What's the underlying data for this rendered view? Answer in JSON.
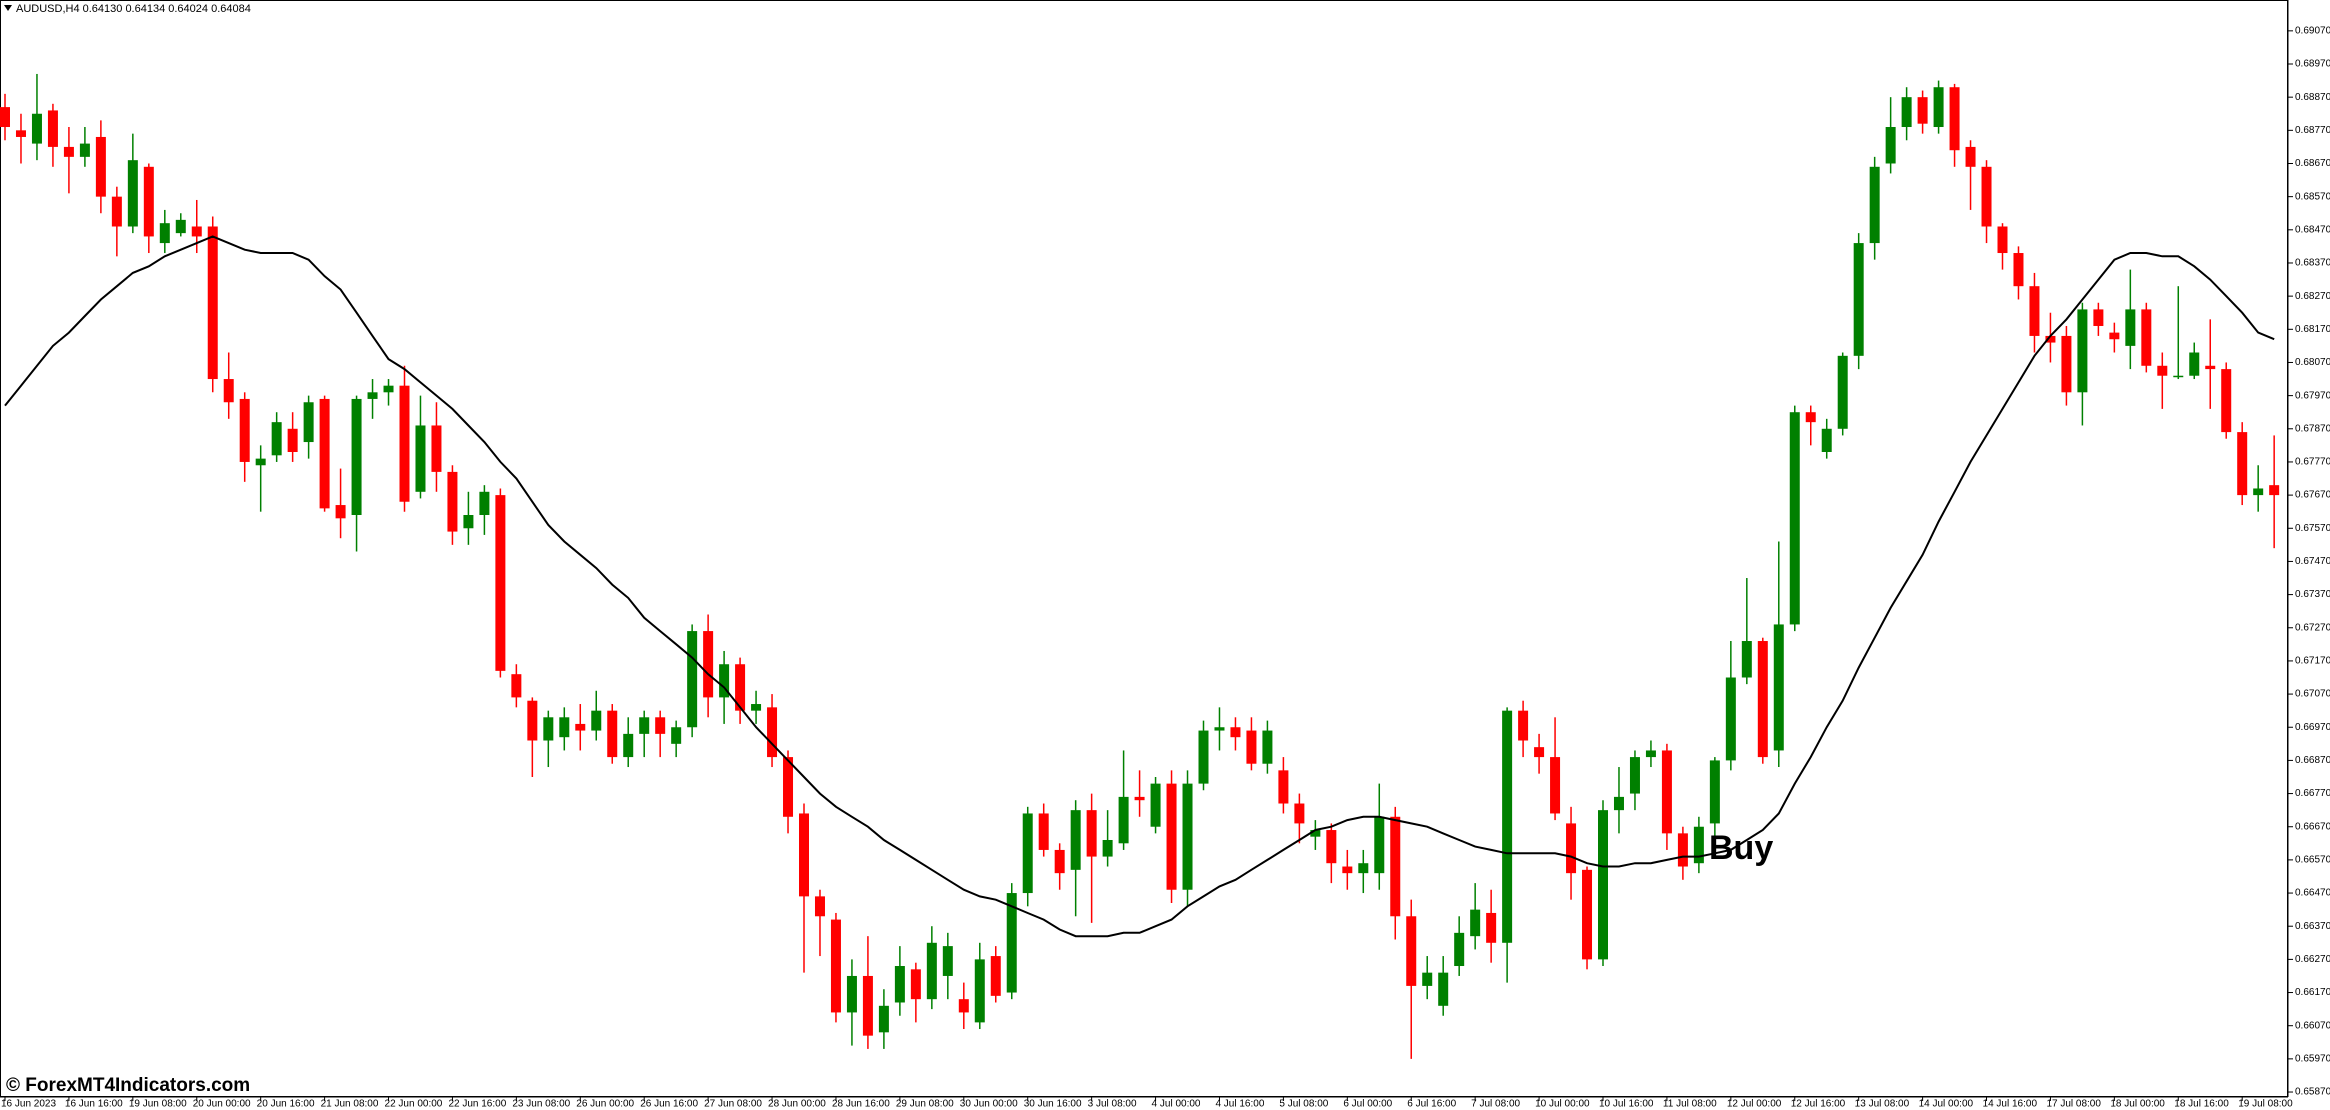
{
  "chart_data": {
    "type": "candlestick",
    "title": "AUDUSD,H4 0.64130 0.64134 0.64024 0.64084",
    "annotation": "Buy",
    "watermark": "© ForexMT4Indicators.com",
    "up_color": "#008000",
    "down_color": "#ff0000",
    "categories": [
      "16 Jun 2023",
      null,
      null,
      null,
      "16 Jun 16:00",
      null,
      null,
      null,
      "19 Jun 08:00",
      null,
      null,
      null,
      "20 Jun 00:00",
      null,
      null,
      null,
      "20 Jun 16:00",
      null,
      null,
      null,
      "21 Jun 08:00",
      null,
      null,
      null,
      "22 Jun 00:00",
      null,
      null,
      null,
      "22 Jun 16:00",
      null,
      null,
      null,
      "23 Jun 08:00",
      null,
      null,
      null,
      "26 Jun 00:00",
      null,
      null,
      null,
      "26 Jun 16:00",
      null,
      null,
      null,
      "27 Jun 08:00",
      null,
      null,
      null,
      "28 Jun 00:00",
      null,
      null,
      null,
      "28 Jun 16:00",
      null,
      null,
      null,
      "29 Jun 08:00",
      null,
      null,
      null,
      "30 Jun 00:00",
      null,
      null,
      null,
      "30 Jun 16:00",
      null,
      null,
      null,
      "3 Jul 08:00",
      null,
      null,
      null,
      "4 Jul 00:00",
      null,
      null,
      null,
      "4 Jul 16:00",
      null,
      null,
      null,
      "5 Jul 08:00",
      null,
      null,
      null,
      "6 Jul 00:00",
      null,
      null,
      null,
      "6 Jul 16:00",
      null,
      null,
      null,
      "7 Jul 08:00",
      null,
      null,
      null,
      "10 Jul 00:00",
      null,
      null,
      null,
      "10 Jul 16:00",
      null,
      null,
      null,
      "11 Jul 08:00",
      null,
      null,
      null,
      "12 Jul 00:00",
      null,
      null,
      null,
      "12 Jul 16:00",
      null,
      null,
      null,
      "13 Jul 08:00",
      null,
      null,
      null,
      "14 Jul 00:00",
      null,
      null,
      null,
      "14 Jul 16:00",
      null,
      null,
      null,
      "17 Jul 08:00",
      null,
      null,
      null,
      "18 Jul 00:00",
      null,
      null,
      null,
      "18 Jul 16:00",
      null,
      null,
      null,
      "19 Jul 08:00",
      null,
      null
    ],
    "open": [
      0.6884,
      0.6877,
      0.6873,
      0.6883,
      0.6872,
      0.6869,
      0.6875,
      0.6857,
      0.6848,
      0.6866,
      0.6843,
      0.6846,
      0.6848,
      0.6848,
      0.6802,
      0.6796,
      0.6776,
      0.6779,
      0.6787,
      0.6783,
      0.6796,
      0.6764,
      0.6761,
      0.6796,
      0.6798,
      0.68,
      0.6768,
      0.6788,
      0.6774,
      0.6757,
      0.6761,
      0.6767,
      0.6713,
      0.6705,
      0.6693,
      0.6694,
      0.6698,
      0.6696,
      0.6702,
      0.6688,
      0.6695,
      0.67,
      0.6692,
      0.6697,
      0.6726,
      0.6706,
      0.6716,
      0.6702,
      0.6703,
      0.6688,
      0.6671,
      0.6646,
      0.6639,
      0.6611,
      0.6622,
      0.6605,
      0.6614,
      0.6624,
      0.6615,
      0.6622,
      0.6615,
      0.6608,
      0.6628,
      0.6617,
      0.6647,
      0.6671,
      0.666,
      0.6654,
      0.6672,
      0.6658,
      0.6662,
      0.6676,
      0.6667,
      0.668,
      0.6648,
      0.668,
      0.6696,
      0.6697,
      0.6696,
      0.6686,
      0.6684,
      0.6674,
      0.6664,
      0.6666,
      0.6655,
      0.6653,
      0.6653,
      0.667,
      0.664,
      0.6619,
      0.6613,
      0.6625,
      0.6634,
      0.6641,
      0.6632,
      0.6702,
      0.6691,
      0.6688,
      0.6668,
      0.6654,
      0.6627,
      0.6672,
      0.6677,
      0.6688,
      0.669,
      0.6665,
      0.6656,
      0.6668,
      0.6687,
      0.6712,
      0.6723,
      0.669,
      0.6728,
      0.6792,
      0.678,
      0.6787,
      0.6809,
      0.6843,
      0.6867,
      0.6878,
      0.6887,
      0.6878,
      0.689,
      0.6872,
      0.6866,
      0.6848,
      0.684,
      0.683,
      0.6815,
      0.6815,
      0.6798,
      0.6823,
      0.6816,
      0.6812,
      0.6823,
      0.6806,
      0.6803,
      0.6803,
      0.6806,
      0.6805,
      0.6786,
      0.6767,
      0.677
    ],
    "high": [
      0.6888,
      0.6882,
      0.6894,
      0.6885,
      0.6878,
      0.6878,
      0.688,
      0.686,
      0.6876,
      0.6867,
      0.6853,
      0.6852,
      0.6856,
      0.6851,
      0.681,
      0.6798,
      0.6782,
      0.6792,
      0.6792,
      0.6797,
      0.6797,
      0.6775,
      0.6797,
      0.6802,
      0.6802,
      0.6806,
      0.6797,
      0.6795,
      0.6776,
      0.6768,
      0.677,
      0.6769,
      0.6716,
      0.6706,
      0.6702,
      0.6703,
      0.6704,
      0.6708,
      0.6704,
      0.67,
      0.6702,
      0.6702,
      0.6699,
      0.6728,
      0.6731,
      0.672,
      0.6718,
      0.6708,
      0.6707,
      0.669,
      0.6674,
      0.6648,
      0.6641,
      0.6627,
      0.6634,
      0.6618,
      0.6631,
      0.6626,
      0.6637,
      0.6635,
      0.662,
      0.6632,
      0.6631,
      0.665,
      0.6673,
      0.6674,
      0.6662,
      0.6675,
      0.6677,
      0.6672,
      0.669,
      0.6684,
      0.6682,
      0.6684,
      0.6684,
      0.6699,
      0.6703,
      0.67,
      0.67,
      0.6699,
      0.6688,
      0.6677,
      0.6669,
      0.6668,
      0.666,
      0.666,
      0.668,
      0.6673,
      0.6645,
      0.6628,
      0.6628,
      0.664,
      0.665,
      0.6648,
      0.6703,
      0.6705,
      0.6695,
      0.67,
      0.6673,
      0.6655,
      0.6675,
      0.6685,
      0.669,
      0.6693,
      0.6692,
      0.6667,
      0.667,
      0.6688,
      0.6723,
      0.6742,
      0.6724,
      0.6753,
      0.6794,
      0.6794,
      0.679,
      0.681,
      0.6846,
      0.6869,
      0.6887,
      0.689,
      0.6889,
      0.6892,
      0.6891,
      0.6874,
      0.6868,
      0.6849,
      0.6842,
      0.6834,
      0.6822,
      0.6818,
      0.6825,
      0.6825,
      0.6819,
      0.6835,
      0.6825,
      0.681,
      0.683,
      0.6813,
      0.682,
      0.6807,
      0.6789,
      0.6776,
      0.6785
    ],
    "low": [
      0.6874,
      0.6867,
      0.6868,
      0.6866,
      0.6858,
      0.6866,
      0.6852,
      0.6839,
      0.6846,
      0.684,
      0.684,
      0.6845,
      0.684,
      0.6798,
      0.679,
      0.6771,
      0.6762,
      0.6777,
      0.6777,
      0.6778,
      0.6762,
      0.6754,
      0.675,
      0.679,
      0.6794,
      0.6762,
      0.6766,
      0.6768,
      0.6752,
      0.6752,
      0.6755,
      0.6712,
      0.6703,
      0.6682,
      0.6685,
      0.669,
      0.669,
      0.6693,
      0.6686,
      0.6685,
      0.6688,
      0.6688,
      0.6688,
      0.6694,
      0.67,
      0.6698,
      0.6698,
      0.6698,
      0.6685,
      0.6665,
      0.6623,
      0.6628,
      0.6608,
      0.6601,
      0.66,
      0.66,
      0.661,
      0.6608,
      0.6612,
      0.6615,
      0.6606,
      0.6606,
      0.6614,
      0.6615,
      0.6643,
      0.6658,
      0.6648,
      0.664,
      0.6638,
      0.6655,
      0.666,
      0.667,
      0.6665,
      0.6644,
      0.6643,
      0.6678,
      0.669,
      0.669,
      0.6684,
      0.6683,
      0.6671,
      0.6662,
      0.666,
      0.665,
      0.6648,
      0.6647,
      0.6648,
      0.6633,
      0.6597,
      0.6615,
      0.661,
      0.6622,
      0.663,
      0.6626,
      0.662,
      0.6688,
      0.6683,
      0.6669,
      0.6645,
      0.6624,
      0.6625,
      0.6665,
      0.6672,
      0.6685,
      0.666,
      0.6651,
      0.6653,
      0.666,
      0.6684,
      0.671,
      0.6686,
      0.6685,
      0.6726,
      0.6782,
      0.6778,
      0.6785,
      0.6805,
      0.6838,
      0.6864,
      0.6874,
      0.6876,
      0.6876,
      0.6866,
      0.6853,
      0.6843,
      0.6835,
      0.6826,
      0.681,
      0.6807,
      0.6794,
      0.6788,
      0.6815,
      0.681,
      0.6805,
      0.6804,
      0.6793,
      0.6802,
      0.6802,
      0.6793,
      0.6784,
      0.6764,
      0.6762,
      0.6751
    ],
    "close": [
      0.6878,
      0.6875,
      0.6882,
      0.6872,
      0.6869,
      0.6873,
      0.6857,
      0.6848,
      0.6868,
      0.6845,
      0.6849,
      0.685,
      0.6845,
      0.6802,
      0.6795,
      0.6777,
      0.6778,
      0.6789,
      0.678,
      0.6795,
      0.6763,
      0.676,
      0.6796,
      0.6798,
      0.68,
      0.6765,
      0.6788,
      0.6774,
      0.6756,
      0.6761,
      0.6768,
      0.6714,
      0.6706,
      0.6693,
      0.67,
      0.67,
      0.6696,
      0.6702,
      0.6688,
      0.6695,
      0.67,
      0.6695,
      0.6697,
      0.6726,
      0.6706,
      0.6716,
      0.6702,
      0.6704,
      0.6688,
      0.667,
      0.6646,
      0.664,
      0.6611,
      0.6622,
      0.6604,
      0.6613,
      0.6625,
      0.6615,
      0.6632,
      0.6631,
      0.6611,
      0.6627,
      0.6616,
      0.6647,
      0.6671,
      0.666,
      0.6653,
      0.6672,
      0.6658,
      0.6663,
      0.6676,
      0.6675,
      0.668,
      0.6648,
      0.668,
      0.6696,
      0.6697,
      0.6694,
      0.6686,
      0.6696,
      0.6674,
      0.6668,
      0.6666,
      0.6656,
      0.6653,
      0.6656,
      0.667,
      0.664,
      0.6619,
      0.6623,
      0.6623,
      0.6635,
      0.6642,
      0.6632,
      0.6702,
      0.6693,
      0.6688,
      0.6671,
      0.6653,
      0.6627,
      0.6672,
      0.6676,
      0.6688,
      0.669,
      0.6665,
      0.6655,
      0.6667,
      0.6687,
      0.6712,
      0.6723,
      0.6688,
      0.6728,
      0.6792,
      0.6789,
      0.6787,
      0.6809,
      0.6843,
      0.6866,
      0.6878,
      0.6887,
      0.6879,
      0.689,
      0.6871,
      0.6866,
      0.6848,
      0.684,
      0.683,
      0.6815,
      0.6813,
      0.6798,
      0.6823,
      0.6818,
      0.6814,
      0.6823,
      0.6806,
      0.6803,
      0.6803,
      0.681,
      0.6805,
      0.6786,
      0.6767,
      0.6769,
      0.6767
    ],
    "moving_average": {
      "color": "#000000",
      "values": [
        0.6794,
        0.68,
        0.6806,
        0.6812,
        0.6816,
        0.6821,
        0.6826,
        0.683,
        0.6834,
        0.6836,
        0.6839,
        0.6841,
        0.6843,
        0.6845,
        0.6843,
        0.6841,
        0.684,
        0.684,
        0.684,
        0.6838,
        0.6833,
        0.6829,
        0.6822,
        0.6815,
        0.6808,
        0.6805,
        0.6801,
        0.6797,
        0.6793,
        0.6788,
        0.6783,
        0.6777,
        0.6772,
        0.6765,
        0.6758,
        0.6753,
        0.6749,
        0.6745,
        0.674,
        0.6736,
        0.673,
        0.6726,
        0.6722,
        0.6718,
        0.6713,
        0.6709,
        0.6703,
        0.6697,
        0.6692,
        0.6687,
        0.6682,
        0.6677,
        0.6673,
        0.667,
        0.6667,
        0.6663,
        0.666,
        0.6657,
        0.6654,
        0.6651,
        0.6648,
        0.6646,
        0.6645,
        0.6643,
        0.6641,
        0.6639,
        0.6636,
        0.6634,
        0.6634,
        0.6634,
        0.6635,
        0.6635,
        0.6637,
        0.6639,
        0.6643,
        0.6646,
        0.6649,
        0.6651,
        0.6654,
        0.6657,
        0.666,
        0.6663,
        0.6666,
        0.6667,
        0.6669,
        0.667,
        0.667,
        0.6669,
        0.6668,
        0.6667,
        0.6665,
        0.6663,
        0.6661,
        0.666,
        0.6659,
        0.6659,
        0.6659,
        0.6659,
        0.6658,
        0.6656,
        0.6655,
        0.6655,
        0.6656,
        0.6656,
        0.6657,
        0.6658,
        0.6658,
        0.6659,
        0.666,
        0.6663,
        0.6666,
        0.6671,
        0.668,
        0.6688,
        0.6697,
        0.6705,
        0.6715,
        0.6724,
        0.6733,
        0.6741,
        0.6749,
        0.6759,
        0.6768,
        0.6777,
        0.6785,
        0.6793,
        0.6801,
        0.6809,
        0.6815,
        0.682,
        0.6826,
        0.6832,
        0.6838,
        0.684,
        0.684,
        0.6839,
        0.6839,
        0.6836,
        0.6832,
        0.6827,
        0.6822,
        0.6816,
        0.6814
      ]
    },
    "ylim": [
      0.65855,
      0.69163
    ],
    "yticks": [
      {
        "value": 0.6907,
        "label": "0.69070"
      },
      {
        "value": 0.6897,
        "label": "0.68970"
      },
      {
        "value": 0.6887,
        "label": "0.68870"
      },
      {
        "value": 0.6877,
        "label": "0.68770"
      },
      {
        "value": 0.6867,
        "label": "0.68670"
      },
      {
        "value": 0.6857,
        "label": "0.68570"
      },
      {
        "value": 0.6847,
        "label": "0.68470"
      },
      {
        "value": 0.6837,
        "label": "0.68370"
      },
      {
        "value": 0.6827,
        "label": "0.68270"
      },
      {
        "value": 0.6817,
        "label": "0.68170"
      },
      {
        "value": 0.6807,
        "label": "0.68070"
      },
      {
        "value": 0.6797,
        "label": "0.67970"
      },
      {
        "value": 0.6787,
        "label": "0.67870"
      },
      {
        "value": 0.6777,
        "label": "0.67770"
      },
      {
        "value": 0.6767,
        "label": "0.67670"
      },
      {
        "value": 0.6757,
        "label": "0.67570"
      },
      {
        "value": 0.6747,
        "label": "0.67470"
      },
      {
        "value": 0.6737,
        "label": "0.67370"
      },
      {
        "value": 0.6727,
        "label": "0.67270"
      },
      {
        "value": 0.6717,
        "label": "0.67170"
      },
      {
        "value": 0.6707,
        "label": "0.67070"
      },
      {
        "value": 0.6697,
        "label": "0.66970"
      },
      {
        "value": 0.6687,
        "label": "0.66870"
      },
      {
        "value": 0.6677,
        "label": "0.66770"
      },
      {
        "value": 0.6667,
        "label": "0.66670"
      },
      {
        "value": 0.6657,
        "label": "0.66570"
      },
      {
        "value": 0.6647,
        "label": "0.66470"
      },
      {
        "value": 0.6637,
        "label": "0.66370"
      },
      {
        "value": 0.6627,
        "label": "0.66270"
      },
      {
        "value": 0.6617,
        "label": "0.66170"
      },
      {
        "value": 0.6607,
        "label": "0.66070"
      },
      {
        "value": 0.6597,
        "label": "0.65970"
      },
      {
        "value": 0.6587,
        "label": "0.65870"
      }
    ]
  }
}
